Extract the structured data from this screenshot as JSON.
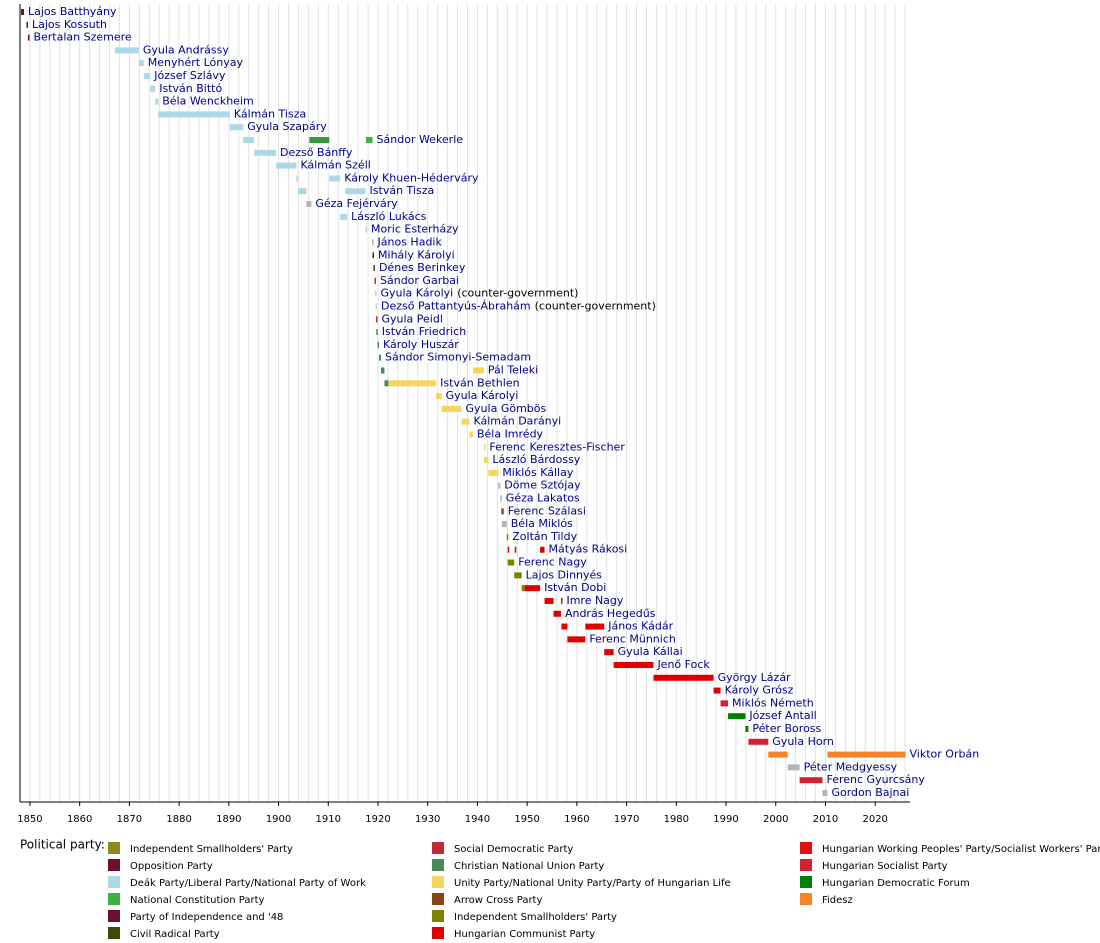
{
  "chart_data": {
    "type": "timeline",
    "xlim": [
      1848,
      2027
    ],
    "xticks": [
      1850,
      1860,
      1870,
      1880,
      1890,
      1900,
      1910,
      1920,
      1930,
      1940,
      1950,
      1960,
      1970,
      1980,
      1990,
      2000,
      2010,
      2020
    ],
    "minor_xticks": [
      1848,
      1850,
      1852,
      1854,
      1856,
      1858,
      1860,
      1862,
      1864,
      1866,
      1868,
      1870,
      1872,
      1874,
      1876,
      1878,
      1880,
      1882,
      1884,
      1886,
      1888,
      1890,
      1892,
      1894,
      1896,
      1898,
      1900,
      1902,
      1904,
      1906,
      1908,
      1910,
      1912,
      1914,
      1916,
      1918,
      1920,
      1922,
      1924,
      1926,
      1928,
      1930,
      1932,
      1934,
      1936,
      1938,
      1940,
      1942,
      1944,
      1946,
      1948,
      1950,
      1952,
      1954,
      1956,
      1958,
      1960,
      1962,
      1964,
      1966,
      1968,
      1970,
      1972,
      1974,
      1976,
      1978,
      1980,
      1982,
      1984,
      1986,
      1988,
      1990,
      1992,
      1994,
      1996,
      1998,
      2000,
      2002,
      2004,
      2006,
      2008,
      2010,
      2012,
      2014,
      2016,
      2018,
      2020,
      2022,
      2024,
      2026
    ],
    "grid": true,
    "rows": [
      {
        "label": "Lajos Batthyány",
        "terms": [
          {
            "start": 1848.2,
            "end": 1848.8,
            "color": "#6e0f2d"
          }
        ]
      },
      {
        "label": "Lajos Kossuth",
        "terms": [
          {
            "start": 1849.3,
            "end": 1849.6,
            "color": "#5a0a25"
          }
        ]
      },
      {
        "label": "Bertalan Szemere",
        "terms": [
          {
            "start": 1849.6,
            "end": 1849.7,
            "color": "#6e0f2d"
          }
        ]
      },
      {
        "label": "Gyula Andrássy",
        "terms": [
          {
            "start": 1867.1,
            "end": 1871.9,
            "color": "#add8e6"
          }
        ]
      },
      {
        "label": "Menyhért Lónyay",
        "terms": [
          {
            "start": 1871.9,
            "end": 1872.9,
            "color": "#add8e6"
          }
        ]
      },
      {
        "label": "József Szlávy",
        "terms": [
          {
            "start": 1872.9,
            "end": 1874.2,
            "color": "#add8e6"
          }
        ]
      },
      {
        "label": "István Bittó",
        "terms": [
          {
            "start": 1874.2,
            "end": 1875.2,
            "color": "#add8e6"
          }
        ]
      },
      {
        "label": "Béla Wenckheim",
        "terms": [
          {
            "start": 1875.2,
            "end": 1875.8,
            "color": "#add8e6"
          }
        ]
      },
      {
        "label": "Kálmán Tisza",
        "terms": [
          {
            "start": 1875.8,
            "end": 1890.2,
            "color": "#add8e6"
          }
        ]
      },
      {
        "label": "Gyula Szapáry",
        "terms": [
          {
            "start": 1890.2,
            "end": 1892.9,
            "color": "#add8e6"
          }
        ]
      },
      {
        "label": "Sándor Wekerle",
        "terms": [
          {
            "start": 1892.9,
            "end": 1895.1,
            "color": "#add8e6"
          },
          {
            "start": 1906.2,
            "end": 1910.2,
            "color": "#2e9a3a"
          },
          {
            "start": 1917.6,
            "end": 1918.9,
            "color": "#3cb043"
          }
        ]
      },
      {
        "label": "Dezső Bánffy",
        "terms": [
          {
            "start": 1895.1,
            "end": 1899.5,
            "color": "#add8e6"
          }
        ]
      },
      {
        "label": "Kálmán Széll",
        "terms": [
          {
            "start": 1899.5,
            "end": 1903.6,
            "color": "#add8e6"
          }
        ]
      },
      {
        "label": "Károly Khuen-Héderváry",
        "terms": [
          {
            "start": 1903.6,
            "end": 1903.9,
            "color": "#add8e6"
          },
          {
            "start": 1910.2,
            "end": 1912.4,
            "color": "#add8e6"
          }
        ]
      },
      {
        "label": "István Tisza",
        "terms": [
          {
            "start": 1903.9,
            "end": 1905.6,
            "color": "#add8e6"
          },
          {
            "start": 1913.4,
            "end": 1917.5,
            "color": "#add8e6"
          }
        ]
      },
      {
        "label": "Géza Fejérváry",
        "terms": [
          {
            "start": 1905.6,
            "end": 1906.6,
            "color": "#b4b4b4"
          }
        ]
      },
      {
        "label": "László Lukács",
        "terms": [
          {
            "start": 1912.4,
            "end": 1913.8,
            "color": "#add8e6"
          }
        ]
      },
      {
        "label": "Moric Esterházy",
        "terms": [
          {
            "start": 1917.5,
            "end": 1917.7,
            "color": "#b8ccd6"
          }
        ]
      },
      {
        "label": "János Hadik",
        "terms": [
          {
            "start": 1918.8,
            "end": 1918.9,
            "color": "#b4b4b4"
          }
        ]
      },
      {
        "label": "Mihály Károlyi",
        "terms": [
          {
            "start": 1918.9,
            "end": 1919.1,
            "color": "#6b1030"
          }
        ]
      },
      {
        "label": "Dénes Berinkey",
        "terms": [
          {
            "start": 1919.1,
            "end": 1919.3,
            "color": "#3d4a0a"
          }
        ]
      },
      {
        "label": "Sándor Garbai",
        "terms": [
          {
            "start": 1919.3,
            "end": 1919.6,
            "color": "#c0283c"
          }
        ]
      },
      {
        "label": "Gyula Károlyi",
        "note": "(counter-government)",
        "terms": [
          {
            "start": 1919.4,
            "end": 1919.6,
            "color": "#c8d4dc"
          }
        ]
      },
      {
        "label": "Dezső Pattantyús-Ábrahám",
        "note": "(counter-government)",
        "terms": [
          {
            "start": 1919.5,
            "end": 1919.6,
            "color": "#c8d4dc"
          }
        ]
      },
      {
        "label": "Gyula Peidl",
        "terms": [
          {
            "start": 1919.6,
            "end": 1919.65,
            "color": "#c0283c"
          }
        ]
      },
      {
        "label": "István Friedrich",
        "terms": [
          {
            "start": 1919.65,
            "end": 1919.9,
            "color": "#4a8a5a"
          }
        ]
      },
      {
        "label": "Károly Huszár",
        "terms": [
          {
            "start": 1919.9,
            "end": 1920.2,
            "color": "#4a8a5a"
          }
        ]
      },
      {
        "label": "Sándor Simonyi-Semadam",
        "terms": [
          {
            "start": 1920.2,
            "end": 1920.6,
            "color": "#4a8a5a"
          }
        ]
      },
      {
        "label": "Pál Teleki",
        "terms": [
          {
            "start": 1920.6,
            "end": 1921.3,
            "color": "#4a8a5a"
          },
          {
            "start": 1939.1,
            "end": 1941.3,
            "color": "#f5d55a"
          }
        ]
      },
      {
        "label": "István Bethlen",
        "terms": [
          {
            "start": 1921.3,
            "end": 1922.1,
            "color": "#4a8a5a"
          },
          {
            "start": 1922.1,
            "end": 1931.7,
            "color": "#f5d55a"
          }
        ]
      },
      {
        "label": "Gyula Károlyi",
        "terms": [
          {
            "start": 1931.7,
            "end": 1932.8,
            "color": "#f5d55a"
          }
        ]
      },
      {
        "label": "Gyula Gömbös",
        "terms": [
          {
            "start": 1932.8,
            "end": 1936.8,
            "color": "#f5d55a"
          }
        ]
      },
      {
        "label": "Kálmán Darányi",
        "terms": [
          {
            "start": 1936.8,
            "end": 1938.4,
            "color": "#f5d55a"
          }
        ]
      },
      {
        "label": "Béla Imrédy",
        "terms": [
          {
            "start": 1938.4,
            "end": 1939.1,
            "color": "#f5d55a"
          }
        ]
      },
      {
        "label": "Ferenc Keresztes-Fischer",
        "terms": [
          {
            "start": 1941.3,
            "end": 1941.35,
            "color": "#f5d55a"
          }
        ]
      },
      {
        "label": "László Bárdossy",
        "terms": [
          {
            "start": 1941.3,
            "end": 1942.2,
            "color": "#f5d55a"
          }
        ]
      },
      {
        "label": "Miklós Kállay",
        "terms": [
          {
            "start": 1942.2,
            "end": 1944.2,
            "color": "#f5d55a"
          }
        ]
      },
      {
        "label": "Döme Sztójay",
        "terms": [
          {
            "start": 1944.2,
            "end": 1944.6,
            "color": "#b4b4b4"
          }
        ]
      },
      {
        "label": "Géza Lakatos",
        "terms": [
          {
            "start": 1944.6,
            "end": 1944.8,
            "color": "#b4b4b4"
          }
        ]
      },
      {
        "label": "Ferenc Szálasi",
        "terms": [
          {
            "start": 1944.8,
            "end": 1945.3,
            "color": "#8b4513"
          }
        ]
      },
      {
        "label": "Béla Miklós",
        "terms": [
          {
            "start": 1944.9,
            "end": 1945.9,
            "color": "#b4b4b4"
          }
        ]
      },
      {
        "label": "Zoltán Tildy",
        "terms": [
          {
            "start": 1945.9,
            "end": 1946.1,
            "color": "#808000"
          }
        ]
      },
      {
        "label": "Mátyás Rákosi",
        "terms": [
          {
            "start": 1946.1,
            "end": 1946.2,
            "color": "#e00000"
          },
          {
            "start": 1947.5,
            "end": 1947.6,
            "color": "#e00000"
          },
          {
            "start": 1952.6,
            "end": 1953.5,
            "color": "#e00000"
          }
        ]
      },
      {
        "label": "Ferenc Nagy",
        "terms": [
          {
            "start": 1946.1,
            "end": 1947.4,
            "color": "#808000"
          }
        ]
      },
      {
        "label": "Lajos Dinnyés",
        "terms": [
          {
            "start": 1947.4,
            "end": 1948.9,
            "color": "#808000"
          }
        ]
      },
      {
        "label": "István Dobi",
        "terms": [
          {
            "start": 1948.9,
            "end": 1949.5,
            "color": "#808000"
          },
          {
            "start": 1949.5,
            "end": 1952.6,
            "color": "#e00000"
          }
        ]
      },
      {
        "label": "Imre Nagy",
        "terms": [
          {
            "start": 1953.5,
            "end": 1955.3,
            "color": "#e00000"
          },
          {
            "start": 1956.8,
            "end": 1956.9,
            "color": "#e00000"
          }
        ]
      },
      {
        "label": "András Hegedűs",
        "terms": [
          {
            "start": 1955.3,
            "end": 1956.8,
            "color": "#e00000"
          }
        ]
      },
      {
        "label": "János Kádár",
        "terms": [
          {
            "start": 1956.9,
            "end": 1958.1,
            "color": "#e00000"
          },
          {
            "start": 1961.7,
            "end": 1965.5,
            "color": "#e00000"
          }
        ]
      },
      {
        "label": "Ferenc Münnich",
        "terms": [
          {
            "start": 1958.1,
            "end": 1961.7,
            "color": "#e00000"
          }
        ]
      },
      {
        "label": "Gyula Kállai",
        "terms": [
          {
            "start": 1965.5,
            "end": 1967.4,
            "color": "#e00000"
          }
        ]
      },
      {
        "label": "Jenő Fock",
        "terms": [
          {
            "start": 1967.4,
            "end": 1975.4,
            "color": "#e00000"
          }
        ]
      },
      {
        "label": "György Lázár",
        "terms": [
          {
            "start": 1975.4,
            "end": 1987.5,
            "color": "#e00000"
          }
        ]
      },
      {
        "label": "Károly Grósz",
        "terms": [
          {
            "start": 1987.5,
            "end": 1988.9,
            "color": "#e00000"
          }
        ]
      },
      {
        "label": "Miklós Németh",
        "terms": [
          {
            "start": 1988.9,
            "end": 1990.4,
            "color": "#d42030"
          }
        ]
      },
      {
        "label": "József Antall",
        "terms": [
          {
            "start": 1990.4,
            "end": 1993.9,
            "color": "#008000"
          }
        ]
      },
      {
        "label": "Péter Boross",
        "terms": [
          {
            "start": 1993.9,
            "end": 1994.5,
            "color": "#008000"
          }
        ]
      },
      {
        "label": "Gyula Horn",
        "terms": [
          {
            "start": 1994.5,
            "end": 1998.5,
            "color": "#d42030"
          }
        ]
      },
      {
        "label": "Viktor Orbán",
        "terms": [
          {
            "start": 1998.5,
            "end": 2002.4,
            "color": "#f5842a"
          },
          {
            "start": 2010.4,
            "end": 2026.1,
            "color": "#f5842a"
          }
        ]
      },
      {
        "label": "Péter Medgyessy",
        "terms": [
          {
            "start": 2002.4,
            "end": 2004.8,
            "color": "#b4b4b4"
          }
        ]
      },
      {
        "label": "Ferenc Gyurcsány",
        "terms": [
          {
            "start": 2004.8,
            "end": 2009.4,
            "color": "#d42030"
          }
        ]
      },
      {
        "label": "Gordon Bajnai",
        "terms": [
          {
            "start": 2009.4,
            "end": 2010.4,
            "color": "#b4b4b4"
          }
        ]
      }
    ],
    "legend_title": "Political party:",
    "legend": [
      {
        "name": "Independent Smallholders' Party",
        "color": "#8b8b1a"
      },
      {
        "name": "Opposition Party",
        "color": "#6e0f2d"
      },
      {
        "name": "Deák Party/Liberal Party/National Party of Work",
        "color": "#add8e6"
      },
      {
        "name": "National Constitution Party",
        "color": "#3cb043"
      },
      {
        "name": "Party of Independence and '48",
        "color": "#6b1030"
      },
      {
        "name": "Civil Radical Party",
        "color": "#3d4a0a"
      },
      {
        "name": "Social Democratic Party",
        "color": "#c0283c"
      },
      {
        "name": "Christian National Union Party",
        "color": "#4a8a5a"
      },
      {
        "name": "Unity Party/National Unity Party/Party of Hungarian Life",
        "color": "#f5d55a"
      },
      {
        "name": "Arrow Cross Party",
        "color": "#8b4513"
      },
      {
        "name": "Independent Smallholders' Party",
        "color": "#808000"
      },
      {
        "name": "Hungarian Communist Party",
        "color": "#e00000"
      },
      {
        "name": "Hungarian Working Peoples' Party/Socialist Workers' Party",
        "color": "#e01010"
      },
      {
        "name": "Hungarian Socialist Party",
        "color": "#d42030"
      },
      {
        "name": "Hungarian Democratic Forum",
        "color": "#008000"
      },
      {
        "name": "Fidesz",
        "color": "#f5842a"
      }
    ]
  }
}
